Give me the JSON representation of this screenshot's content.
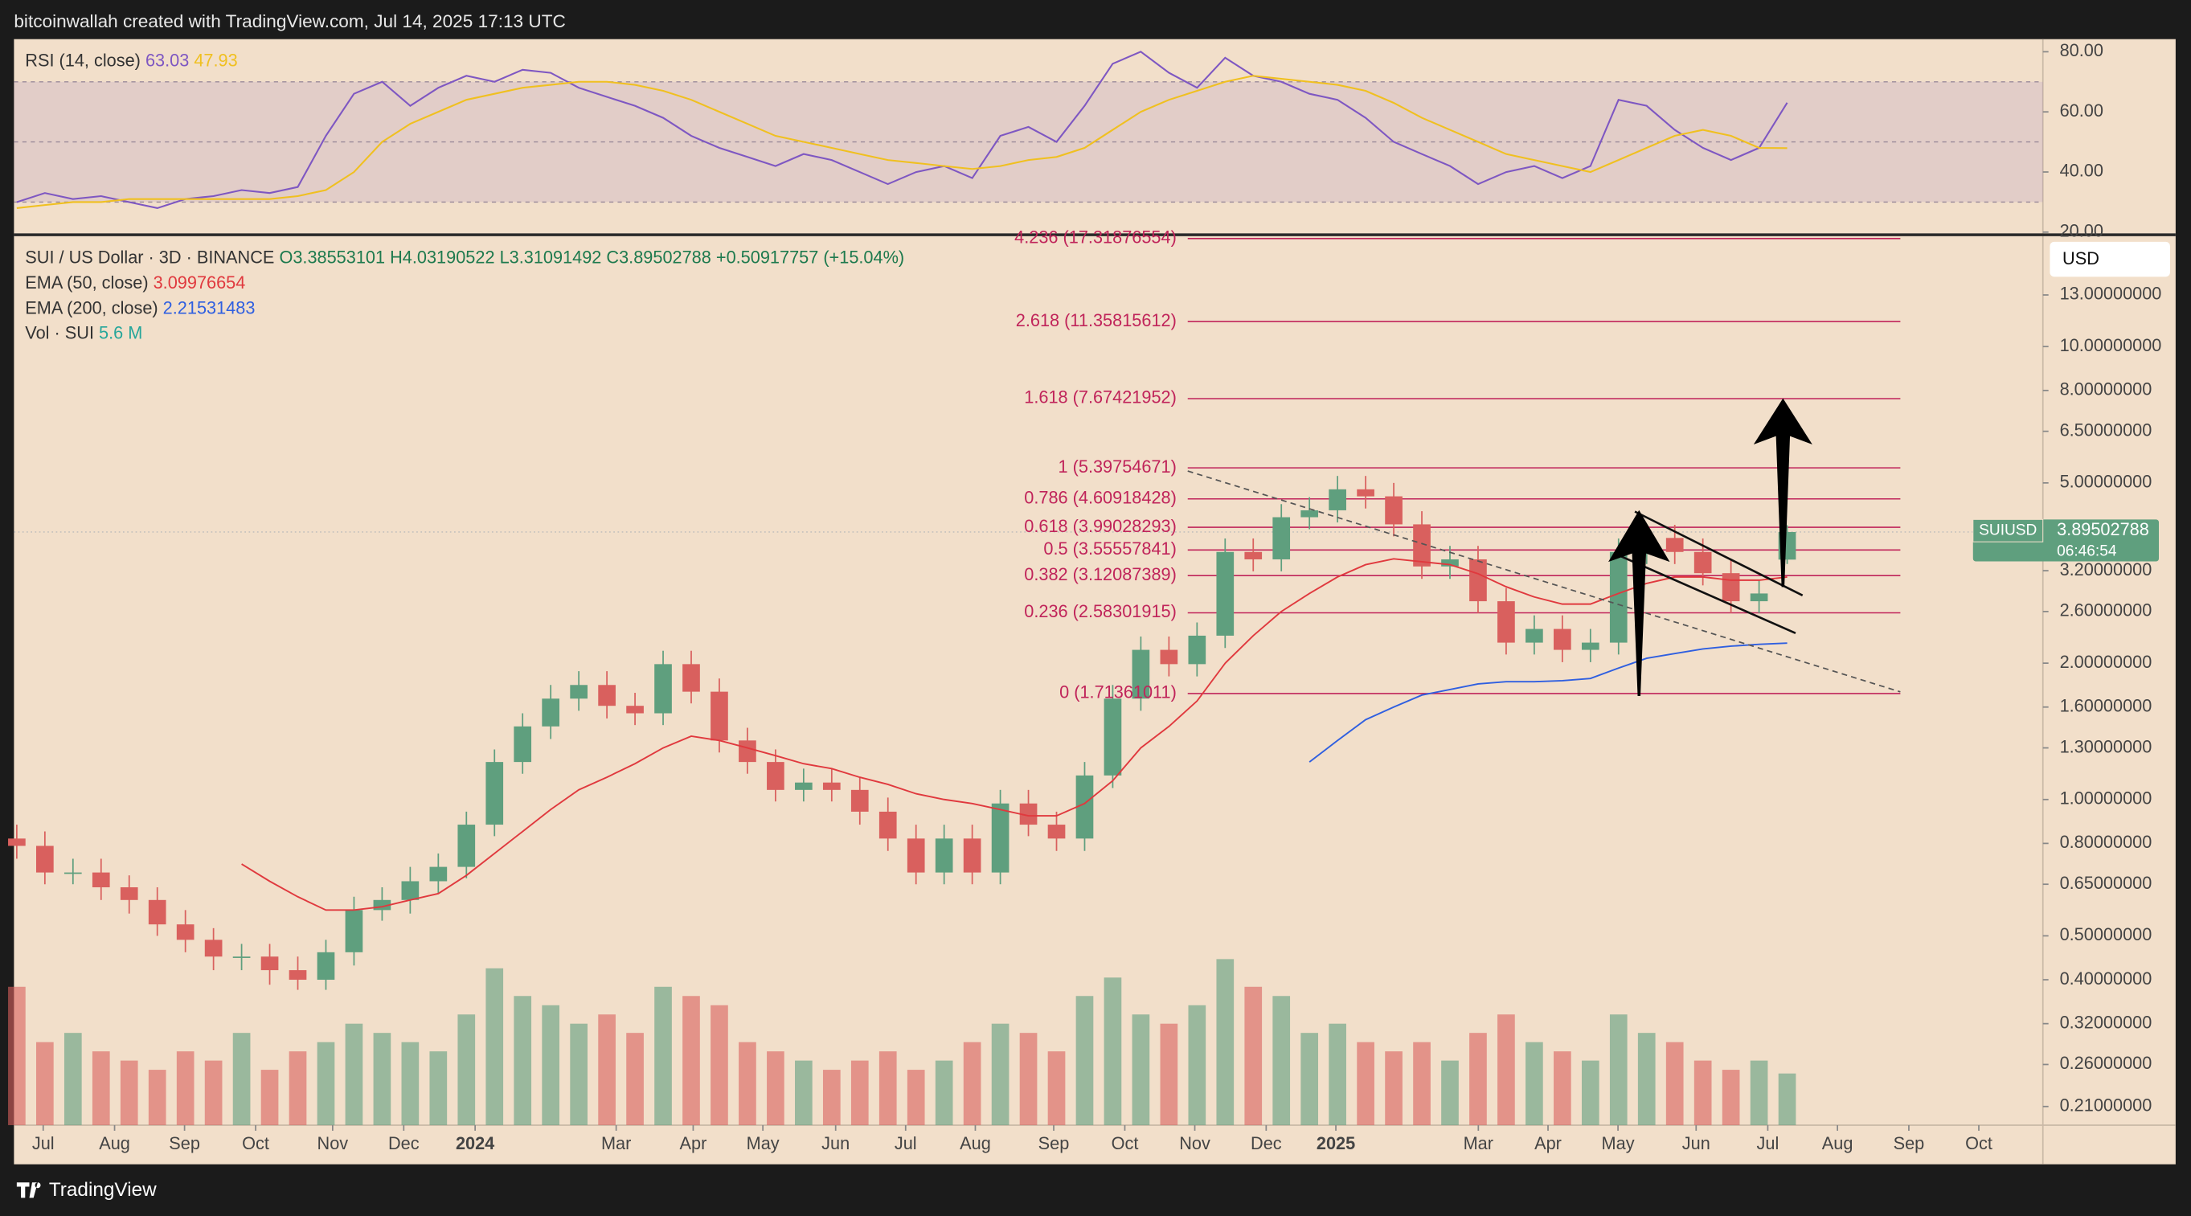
{
  "header": {
    "text": "bitcoinwallah created with TradingView.com, Jul 14, 2025 17:13 UTC"
  },
  "footer": {
    "brand": "TradingView"
  },
  "chart_data": [
    {
      "type": "candlestick",
      "title": "SUI / US Dollar · 3D · BINANCE",
      "ohlc_labels": [
        "O3.38553101",
        "H4.03190522",
        "L3.31091492",
        "C3.89502788"
      ],
      "change_label": "+0.50917757 (+15.04%)",
      "currency": "USD",
      "log_scale": true,
      "ylim": [
        0.191,
        17.4
      ],
      "yticks": [
        {
          "value": 13,
          "label": "13.00000000"
        },
        {
          "value": 10,
          "label": "10.00000000"
        },
        {
          "value": 8,
          "label": "8.00000000"
        },
        {
          "value": 6.5,
          "label": "6.50000000"
        },
        {
          "value": 5,
          "label": "5.00000000"
        },
        {
          "value": 3.2,
          "label": "3.20000000"
        },
        {
          "value": 2.6,
          "label": "2.60000000"
        },
        {
          "value": 2,
          "label": "2.00000000"
        },
        {
          "value": 1.6,
          "label": "1.60000000"
        },
        {
          "value": 1.3,
          "label": "1.30000000"
        },
        {
          "value": 1,
          "label": "1.00000000"
        },
        {
          "value": 0.8,
          "label": "0.80000000"
        },
        {
          "value": 0.65,
          "label": "0.65000000"
        },
        {
          "value": 0.5,
          "label": "0.50000000"
        },
        {
          "value": 0.4,
          "label": "0.40000000"
        },
        {
          "value": 0.32,
          "label": "0.32000000"
        },
        {
          "value": 0.26,
          "label": "0.26000000"
        },
        {
          "value": 0.21,
          "label": "0.21000000"
        }
      ],
      "xlim": [
        -0.1,
        72.1
      ],
      "xticks": [
        {
          "value": 0.94,
          "label": "Jul"
        },
        {
          "value": 3.48,
          "label": "Aug"
        },
        {
          "value": 5.97,
          "label": "Sep"
        },
        {
          "value": 8.5,
          "label": "Oct"
        },
        {
          "value": 11.24,
          "label": "Nov"
        },
        {
          "value": 13.77,
          "label": "Dec"
        },
        {
          "value": 16.31,
          "label": "2024"
        },
        {
          "value": 21.33,
          "label": "Mar"
        },
        {
          "value": 24.07,
          "label": "Apr"
        },
        {
          "value": 26.55,
          "label": "May"
        },
        {
          "value": 29.14,
          "label": "Jun"
        },
        {
          "value": 31.63,
          "label": "Jul"
        },
        {
          "value": 34.11,
          "label": "Aug"
        },
        {
          "value": 36.9,
          "label": "Sep"
        },
        {
          "value": 39.43,
          "label": "Oct"
        },
        {
          "value": 41.92,
          "label": "Nov"
        },
        {
          "value": 44.46,
          "label": "Dec"
        },
        {
          "value": 46.94,
          "label": "2025"
        },
        {
          "value": 52.01,
          "label": "Mar"
        },
        {
          "value": 54.49,
          "label": "Apr"
        },
        {
          "value": 56.98,
          "label": "May"
        },
        {
          "value": 59.76,
          "label": "Jun"
        },
        {
          "value": 62.31,
          "label": "Jul"
        },
        {
          "value": 64.79,
          "label": "Aug"
        },
        {
          "value": 67.33,
          "label": "Sep"
        },
        {
          "value": 69.82,
          "label": "Oct"
        }
      ],
      "up_color": "#5f9f7e",
      "down_color": "#d9605e",
      "candles": {
        "open": [
          0.82,
          0.79,
          0.69,
          0.69,
          0.64,
          0.6,
          0.53,
          0.49,
          0.45,
          0.45,
          0.42,
          0.4,
          0.46,
          0.57,
          0.6,
          0.66,
          0.71,
          0.88,
          1.21,
          1.45,
          1.67,
          1.79,
          1.61,
          1.55,
          1.99,
          1.73,
          1.35,
          1.21,
          1.05,
          1.09,
          1.05,
          0.94,
          0.82,
          0.69,
          0.82,
          0.69,
          0.98,
          0.88,
          0.82,
          1.13,
          1.67,
          2.14,
          1.99,
          2.3,
          3.52,
          3.39,
          4.2,
          4.35,
          4.84,
          4.67,
          4.05,
          3.27,
          3.39,
          2.74,
          2.22,
          2.38,
          2.14,
          2.22,
          3.52,
          3.78,
          3.52,
          3.16,
          2.74,
          3.38553101
        ],
        "high": [
          0.88,
          0.85,
          0.74,
          0.74,
          0.68,
          0.64,
          0.57,
          0.52,
          0.48,
          0.48,
          0.45,
          0.49,
          0.61,
          0.64,
          0.71,
          0.76,
          0.94,
          1.29,
          1.55,
          1.79,
          1.92,
          1.92,
          1.72,
          2.13,
          2.13,
          1.85,
          1.44,
          1.29,
          1.17,
          1.17,
          1.12,
          1.01,
          0.88,
          0.88,
          0.88,
          1.05,
          1.05,
          0.94,
          1.21,
          1.79,
          2.29,
          2.29,
          2.46,
          3.77,
          3.77,
          4.49,
          4.65,
          5.18,
          5.18,
          5.0,
          4.33,
          3.63,
          3.63,
          2.93,
          2.55,
          2.55,
          2.38,
          3.77,
          4.04,
          4.04,
          3.77,
          3.38,
          3.05,
          4.03190522
        ],
        "low": [
          0.74,
          0.65,
          0.65,
          0.6,
          0.56,
          0.5,
          0.46,
          0.42,
          0.42,
          0.39,
          0.38,
          0.38,
          0.43,
          0.54,
          0.56,
          0.62,
          0.67,
          0.83,
          1.14,
          1.36,
          1.57,
          1.51,
          1.46,
          1.46,
          1.63,
          1.27,
          1.14,
          0.99,
          0.99,
          0.99,
          0.88,
          0.77,
          0.65,
          0.65,
          0.65,
          0.65,
          0.83,
          0.77,
          0.77,
          1.06,
          1.57,
          1.87,
          1.87,
          2.16,
          3.19,
          3.19,
          3.95,
          4.09,
          4.39,
          3.81,
          3.07,
          3.07,
          2.58,
          2.09,
          2.09,
          2.01,
          2.01,
          2.09,
          3.31,
          3.31,
          2.97,
          2.58,
          2.58,
          3.31091492
        ],
        "close": [
          0.79,
          0.69,
          0.69,
          0.64,
          0.6,
          0.53,
          0.49,
          0.45,
          0.45,
          0.42,
          0.4,
          0.46,
          0.57,
          0.6,
          0.66,
          0.71,
          0.88,
          1.21,
          1.45,
          1.67,
          1.79,
          1.61,
          1.55,
          1.99,
          1.73,
          1.35,
          1.21,
          1.05,
          1.09,
          1.05,
          0.94,
          0.82,
          0.69,
          0.82,
          0.69,
          0.98,
          0.88,
          0.82,
          1.13,
          1.67,
          2.14,
          1.99,
          2.3,
          3.52,
          3.39,
          4.2,
          4.35,
          4.84,
          4.67,
          4.05,
          3.27,
          3.39,
          2.74,
          2.22,
          2.38,
          2.14,
          2.22,
          3.52,
          3.78,
          3.52,
          3.16,
          2.74,
          2.85,
          3.89502788
        ]
      },
      "series": [
        {
          "name": "EMA (50, close)",
          "color": "#e0393e",
          "last": 3.09976654,
          "values": [
            null,
            null,
            null,
            null,
            null,
            null,
            null,
            null,
            0.72,
            0.66,
            0.61,
            0.57,
            0.57,
            0.58,
            0.6,
            0.62,
            0.68,
            0.76,
            0.85,
            0.95,
            1.05,
            1.12,
            1.2,
            1.3,
            1.38,
            1.35,
            1.3,
            1.25,
            1.2,
            1.17,
            1.12,
            1.08,
            1.03,
            1.0,
            0.98,
            0.95,
            0.92,
            0.92,
            0.98,
            1.1,
            1.3,
            1.45,
            1.65,
            2.0,
            2.3,
            2.6,
            2.85,
            3.1,
            3.3,
            3.4,
            3.35,
            3.3,
            3.15,
            2.95,
            2.8,
            2.7,
            2.7,
            2.85,
            3.0,
            3.1,
            3.1,
            3.05,
            3.05,
            3.09976654
          ]
        },
        {
          "name": "EMA (200, close)",
          "color": "#2f5fe0",
          "last": 2.21531483,
          "values": [
            null,
            null,
            null,
            null,
            null,
            null,
            null,
            null,
            null,
            null,
            null,
            null,
            null,
            null,
            null,
            null,
            null,
            null,
            null,
            null,
            null,
            null,
            null,
            null,
            null,
            null,
            null,
            null,
            null,
            null,
            null,
            null,
            null,
            null,
            null,
            null,
            null,
            null,
            null,
            null,
            null,
            null,
            null,
            null,
            null,
            null,
            1.21,
            1.35,
            1.5,
            1.6,
            1.7,
            1.75,
            1.8,
            1.82,
            1.82,
            1.83,
            1.85,
            1.95,
            2.05,
            2.1,
            2.15,
            2.18,
            2.2,
            2.21531483
          ]
        }
      ],
      "volume": {
        "name": "Vol · SUI",
        "color": "#26a69a",
        "last": 5.6,
        "last_label": "5.6 M",
        "values": [
          15,
          9,
          10,
          8,
          7,
          6,
          8,
          7,
          10,
          6,
          8,
          9,
          11,
          10,
          9,
          8,
          12,
          17,
          14,
          13,
          11,
          12,
          10,
          15,
          14,
          13,
          9,
          8,
          7,
          6,
          7,
          8,
          6,
          7,
          9,
          11,
          10,
          8,
          14,
          16,
          12,
          11,
          13,
          18,
          15,
          14,
          10,
          11,
          9,
          8,
          9,
          7,
          10,
          12,
          9,
          8,
          7,
          12,
          10,
          9,
          7,
          6,
          7,
          5.6
        ]
      },
      "fib_color": "#c0245a",
      "fib_levels": [
        {
          "label": "4.236 (17.31876554)",
          "value": 17.31876554
        },
        {
          "label": "2.618 (11.35815612)",
          "value": 11.35815612
        },
        {
          "label": "1.618 (7.67421952)",
          "value": 7.67421952
        },
        {
          "label": "1 (5.39754671)",
          "value": 5.39754671
        },
        {
          "label": "0.786 (4.60918428)",
          "value": 4.60918428
        },
        {
          "label": "0.618 (3.99028293)",
          "value": 3.99028293
        },
        {
          "label": "0.5 (3.55557841)",
          "value": 3.55557841
        },
        {
          "label": "0.382 (3.12087389)",
          "value": 3.12087389
        },
        {
          "label": "0.236 (2.58301915)",
          "value": 2.58301915
        },
        {
          "label": "0 (1.71361011)",
          "value": 1.71361011
        }
      ],
      "last_price": {
        "symbol": "SUIUSD",
        "value": 3.89502788,
        "countdown": "06:46:54",
        "color": "#5f9f7e"
      }
    },
    {
      "type": "line",
      "title": "RSI (14, close)",
      "ylim": [
        19.1,
        84.2
      ],
      "yticks": [
        {
          "value": 80,
          "label": "80.00"
        },
        {
          "value": 60,
          "label": "60.00"
        },
        {
          "value": 40,
          "label": "40.00"
        },
        {
          "value": 20,
          "label": "20.00"
        }
      ],
      "levels": [
        30,
        50,
        70
      ],
      "band_color": "#7e57c2",
      "series": [
        {
          "color": "#7e57c2",
          "last": 63.03,
          "values": [
            30,
            33,
            31,
            32,
            30,
            28,
            31,
            32,
            34,
            33,
            35,
            52,
            66,
            70,
            62,
            68,
            72,
            70,
            74,
            73,
            68,
            65,
            62,
            58,
            52,
            48,
            45,
            42,
            46,
            44,
            40,
            36,
            40,
            42,
            38,
            52,
            55,
            50,
            62,
            76,
            80,
            73,
            68,
            78,
            72,
            70,
            66,
            64,
            58,
            50,
            46,
            42,
            36,
            40,
            42,
            38,
            42,
            64,
            62,
            54,
            48,
            44,
            48,
            63.03
          ]
        },
        {
          "color": "#f0c020",
          "last": 47.93,
          "values": [
            28,
            29,
            30,
            30,
            31,
            31,
            31,
            31,
            31,
            31,
            32,
            34,
            40,
            50,
            56,
            60,
            64,
            66,
            68,
            69,
            70,
            70,
            69,
            67,
            64,
            60,
            56,
            52,
            50,
            48,
            46,
            44,
            43,
            42,
            41,
            42,
            44,
            45,
            48,
            54,
            60,
            64,
            67,
            70,
            72,
            71,
            70,
            69,
            67,
            63,
            58,
            54,
            50,
            46,
            44,
            42,
            40,
            44,
            48,
            52,
            54,
            52,
            48,
            47.93
          ]
        }
      ]
    }
  ]
}
